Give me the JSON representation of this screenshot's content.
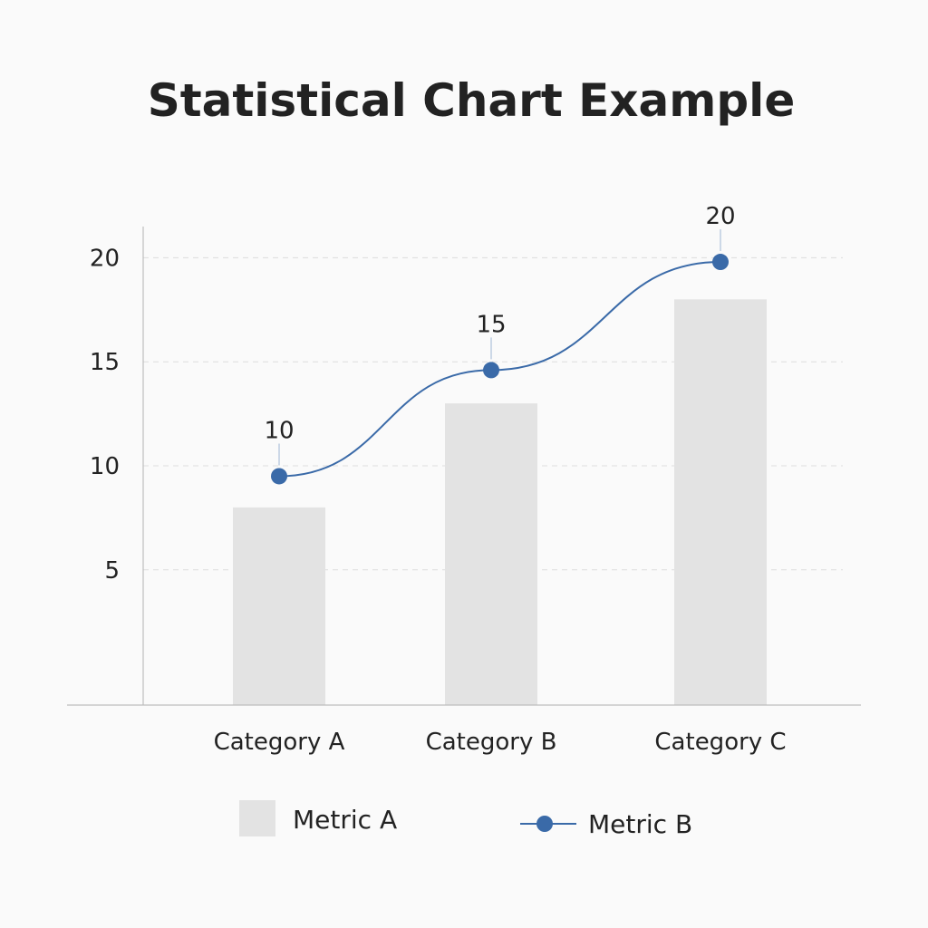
{
  "chart_data": {
    "type": "bar",
    "title": "Statistical Chart Example",
    "xlabel": "",
    "ylabel": "",
    "categories": [
      "Category A",
      "Category B",
      "Category C"
    ],
    "ylim": [
      -1.5,
      21.5
    ],
    "yticks": [
      5,
      10,
      15,
      20
    ],
    "grid": true,
    "legend_position": "bottom",
    "series": [
      {
        "name": "Metric A",
        "kind": "bar",
        "values": [
          8,
          13,
          18
        ],
        "color": "#e3e3e3"
      },
      {
        "name": "Metric B",
        "kind": "line",
        "values": [
          9.5,
          14.6,
          19.8
        ],
        "point_labels": [
          "10",
          "15",
          "20"
        ],
        "color": "#3a6aa8"
      }
    ]
  }
}
